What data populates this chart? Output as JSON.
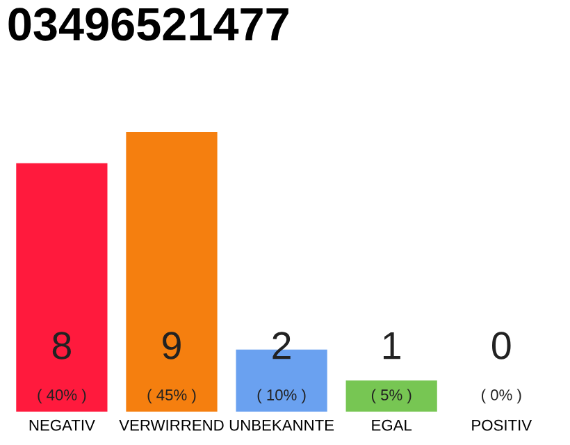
{
  "chart_data": {
    "type": "bar",
    "title": "03496521477",
    "categories": [
      "NEGATIV",
      "VERWIRREND",
      "UNBEKANNTE",
      "EGAL",
      "POSITIV"
    ],
    "values": [
      8,
      9,
      2,
      1,
      0
    ],
    "colors": [
      "#ff1a3d",
      "#f57f0f",
      "#6aa1f0",
      "#77c653",
      "#8a8a8a"
    ],
    "value_labels": [
      "8\n( 40% )",
      "9\n( 45% )",
      "2\n( 10% )",
      "1\n( 5% )",
      "0\n( 0% )"
    ],
    "grid": false,
    "legend": false
  }
}
